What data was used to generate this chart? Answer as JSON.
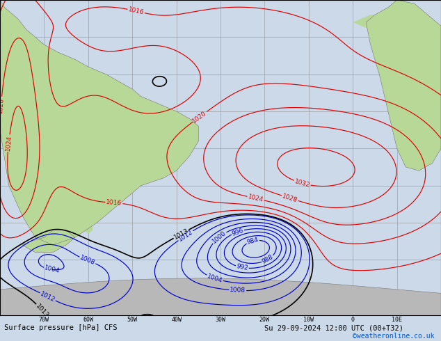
{
  "title_bottom": "Surface pressure [hPa] CFS",
  "date_str": "Su 29-09-2024 12:00 UTC (00+T32)",
  "credit": "©weatheronline.co.uk",
  "figsize": [
    6.34,
    4.9
  ],
  "dpi": 100,
  "bg_ocean": "#ccd9e8",
  "bg_land": "#b8d898",
  "bg_antarctica": "#b8b8b8",
  "grid_color": "#888888",
  "grid_alpha": 0.7,
  "contour_black_color": "#000000",
  "contour_red_color": "#dd0000",
  "contour_blue_color": "#0000cc",
  "label_fontsize": 6.5,
  "bottom_fontsize": 7.5,
  "credit_fontsize": 7,
  "credit_color": "#0055cc",
  "xlim": [
    -80,
    20
  ],
  "ylim": [
    -75,
    10
  ],
  "xticks": [
    -70,
    -60,
    -50,
    -40,
    -30,
    -20,
    -10,
    0,
    10
  ],
  "xtick_labels": [
    "70W",
    "60W",
    "50W",
    "40W",
    "30W",
    "20W",
    "10W",
    "0",
    "10E"
  ],
  "grid_lons": [
    -70,
    -60,
    -50,
    -40,
    -30,
    -20,
    -10,
    0,
    10
  ],
  "grid_lats": [
    -70,
    -60,
    -50,
    -40,
    -30,
    -20,
    -10,
    0
  ]
}
